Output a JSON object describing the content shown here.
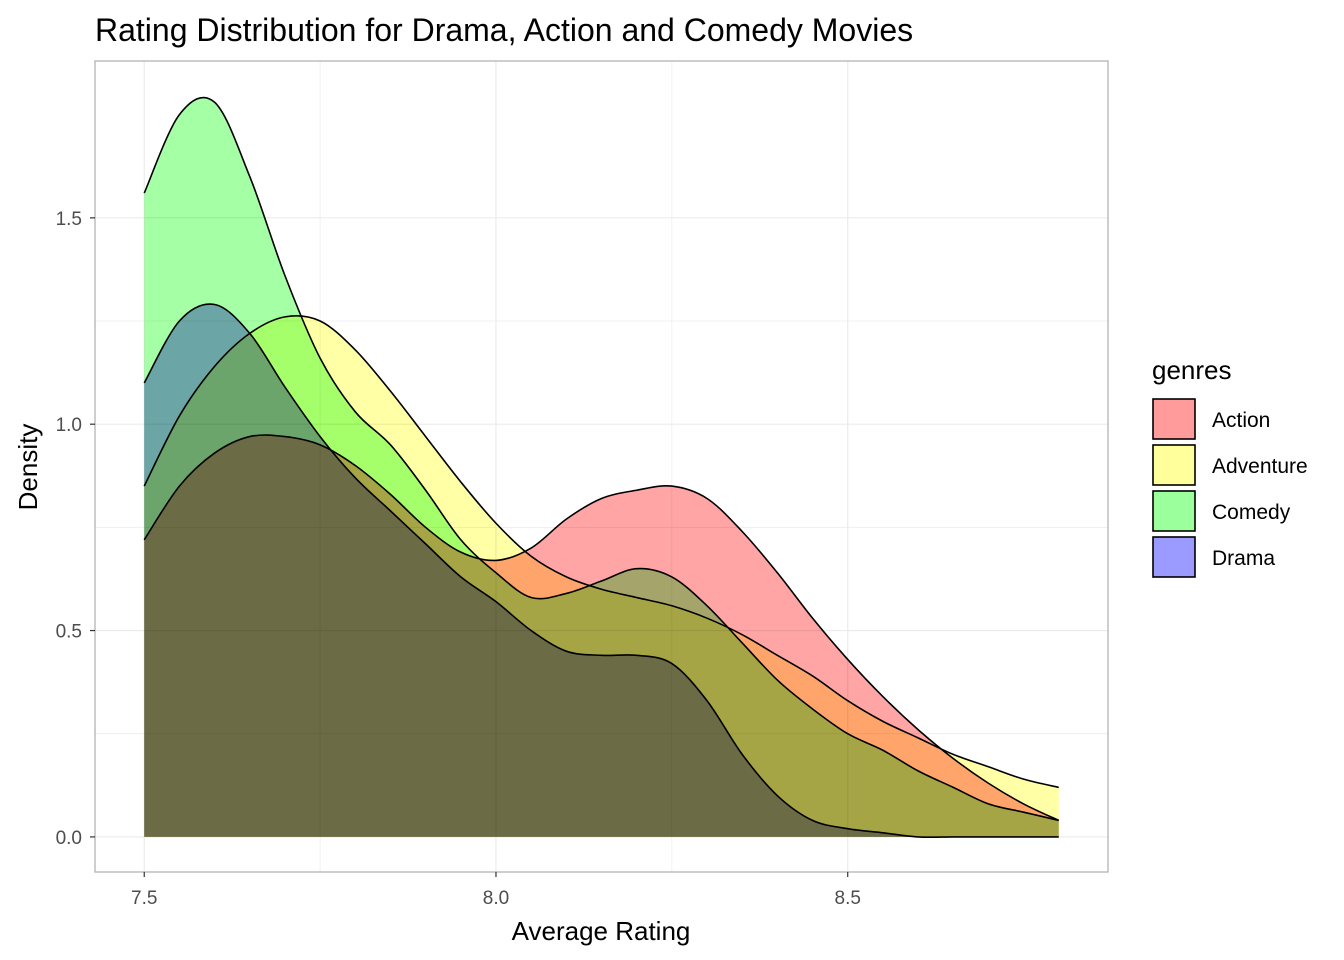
{
  "chart_data": {
    "type": "area",
    "subtype": "density",
    "title": "Rating Distribution for Drama, Action and Comedy Movies",
    "xlabel": "Average Rating",
    "ylabel": "Density",
    "xlim": [
      7.43,
      8.87
    ],
    "ylim": [
      -0.085,
      1.88
    ],
    "xticks": [
      7.5,
      8.0,
      8.5
    ],
    "xtick_labels": [
      "7.5",
      "8.0",
      "8.5"
    ],
    "yticks": [
      0.0,
      0.5,
      1.0,
      1.5
    ],
    "ytick_labels": [
      "0.0",
      "0.5",
      "1.0",
      "1.5"
    ],
    "grid": true,
    "legend_title": "genres",
    "legend_position": "right",
    "series": [
      {
        "name": "Action",
        "color": "#ff9b9b",
        "x": [
          7.5,
          7.55,
          7.6,
          7.65,
          7.7,
          7.75,
          7.8,
          7.85,
          7.9,
          7.95,
          8.0,
          8.05,
          8.1,
          8.15,
          8.2,
          8.25,
          8.3,
          8.35,
          8.4,
          8.45,
          8.5,
          8.55,
          8.6,
          8.65,
          8.7,
          8.75,
          8.8
        ],
        "values": [
          0.72,
          0.85,
          0.93,
          0.97,
          0.97,
          0.95,
          0.9,
          0.83,
          0.75,
          0.69,
          0.67,
          0.7,
          0.77,
          0.82,
          0.84,
          0.85,
          0.82,
          0.74,
          0.64,
          0.53,
          0.43,
          0.34,
          0.26,
          0.19,
          0.13,
          0.08,
          0.04
        ]
      },
      {
        "name": "Adventure",
        "color": "#ffff9b",
        "x": [
          7.5,
          7.55,
          7.6,
          7.65,
          7.7,
          7.75,
          7.8,
          7.85,
          7.9,
          7.95,
          8.0,
          8.05,
          8.1,
          8.15,
          8.2,
          8.25,
          8.3,
          8.35,
          8.4,
          8.45,
          8.5,
          8.55,
          8.6,
          8.65,
          8.7,
          8.75,
          8.8
        ],
        "values": [
          0.85,
          1.02,
          1.14,
          1.22,
          1.26,
          1.25,
          1.18,
          1.08,
          0.97,
          0.86,
          0.76,
          0.68,
          0.63,
          0.6,
          0.58,
          0.56,
          0.53,
          0.49,
          0.44,
          0.39,
          0.33,
          0.28,
          0.24,
          0.2,
          0.17,
          0.14,
          0.12
        ]
      },
      {
        "name": "Comedy",
        "color": "#9bff9b",
        "x": [
          7.5,
          7.55,
          7.6,
          7.65,
          7.7,
          7.75,
          7.8,
          7.85,
          7.9,
          7.95,
          8.0,
          8.05,
          8.1,
          8.15,
          8.2,
          8.25,
          8.3,
          8.35,
          8.4,
          8.45,
          8.5,
          8.55,
          8.6,
          8.65,
          8.7,
          8.75,
          8.8
        ],
        "values": [
          1.56,
          1.75,
          1.78,
          1.6,
          1.36,
          1.16,
          1.03,
          0.95,
          0.84,
          0.72,
          0.64,
          0.58,
          0.59,
          0.62,
          0.65,
          0.63,
          0.56,
          0.47,
          0.38,
          0.31,
          0.25,
          0.21,
          0.16,
          0.12,
          0.08,
          0.06,
          0.04
        ]
      },
      {
        "name": "Drama",
        "color": "#9b9bff",
        "x": [
          7.5,
          7.55,
          7.6,
          7.65,
          7.7,
          7.75,
          7.8,
          7.85,
          7.9,
          7.95,
          8.0,
          8.05,
          8.1,
          8.15,
          8.2,
          8.25,
          8.3,
          8.35,
          8.4,
          8.45,
          8.5,
          8.55,
          8.6,
          8.65,
          8.7,
          8.75,
          8.8
        ],
        "values": [
          1.1,
          1.25,
          1.29,
          1.22,
          1.09,
          0.97,
          0.87,
          0.79,
          0.71,
          0.63,
          0.57,
          0.5,
          0.45,
          0.44,
          0.44,
          0.42,
          0.33,
          0.2,
          0.1,
          0.04,
          0.02,
          0.01,
          0.0,
          0.0,
          0.0,
          0.0,
          0.0
        ]
      }
    ]
  }
}
